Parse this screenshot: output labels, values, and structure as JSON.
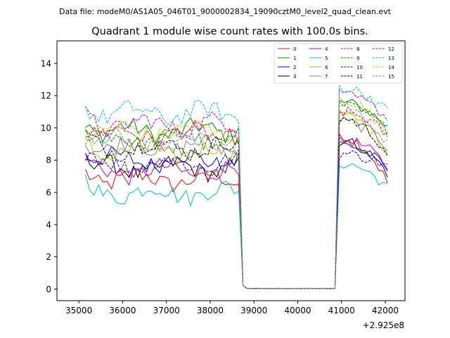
{
  "header": {
    "data_file": "Data file: modeM0/AS1A05_046T01_9000002834_19090cztM0_level2_quad_clean.evt"
  },
  "chart_data": {
    "type": "line",
    "title": "Quadrant 1 module wise count rates with 100.0s bins.",
    "xlabel": "",
    "ylabel": "",
    "x_offset_label": "+2.925e8",
    "xlim": [
      34500,
      42450
    ],
    "ylim": [
      -0.72,
      15.4
    ],
    "xticks": [
      35000,
      36000,
      37000,
      38000,
      39000,
      40000,
      41000,
      42000
    ],
    "xtick_labels": [
      "35000",
      "36000",
      "37000",
      "38000",
      "39000",
      "40000",
      "41000",
      "42000"
    ],
    "yticks": [
      0,
      2,
      4,
      6,
      8,
      10,
      12,
      14
    ],
    "ytick_labels": [
      "0",
      "2",
      "4",
      "6",
      "8",
      "10",
      "12",
      "14"
    ],
    "legend_position": "top-right",
    "x_segments": [
      {
        "start": 35150,
        "step": 100,
        "count": 36
      },
      {
        "start": 38750,
        "step": 100,
        "count": 22
      },
      {
        "start": 40950,
        "step": 100,
        "count": 12
      }
    ],
    "gap_level": 0.02,
    "series": [
      {
        "name": "0",
        "color": "#ff0000",
        "dash": false,
        "level1": 6.8,
        "level2": 9.5,
        "tail": 6.6
      },
      {
        "name": "1",
        "color": "#008000",
        "dash": false,
        "level1": 9.8,
        "level2": 11.6,
        "tail": 10.0
      },
      {
        "name": "2",
        "color": "#0000ff",
        "dash": false,
        "level1": 8.0,
        "level2": 9.0,
        "tail": 7.4
      },
      {
        "name": "3",
        "color": "#000000",
        "dash": false,
        "level1": 7.5,
        "level2": 9.2,
        "tail": 7.2
      },
      {
        "name": "4",
        "color": "#bf00bf",
        "dash": false,
        "level1": 7.3,
        "level2": 9.3,
        "tail": 7.6
      },
      {
        "name": "5",
        "color": "#00bfbf",
        "dash": false,
        "level1": 6.0,
        "level2": 7.8,
        "tail": 6.3
      },
      {
        "name": "6",
        "color": "#bfbf00",
        "dash": false,
        "level1": 8.5,
        "level2": 10.8,
        "tail": 8.5
      },
      {
        "name": "7",
        "color": "#808080",
        "dash": false,
        "level1": 8.8,
        "level2": 10.4,
        "tail": 8.8
      },
      {
        "name": "8",
        "color": "#ff0000",
        "dash": true,
        "level1": 9.6,
        "level2": 11.0,
        "tail": 9.5
      },
      {
        "name": "9",
        "color": "#008000",
        "dash": true,
        "level1": 9.3,
        "level2": 11.4,
        "tail": 9.8
      },
      {
        "name": "10",
        "color": "#0000ff",
        "dash": true,
        "level1": 7.8,
        "level2": 8.4,
        "tail": 7.6
      },
      {
        "name": "11",
        "color": "#000000",
        "dash": true,
        "level1": 8.8,
        "level2": 10.6,
        "tail": 8.4
      },
      {
        "name": "12",
        "color": "#bf00bf",
        "dash": true,
        "level1": 10.2,
        "level2": 12.0,
        "tail": 10.6
      },
      {
        "name": "13",
        "color": "#00bfbf",
        "dash": true,
        "level1": 10.9,
        "level2": 12.5,
        "tail": 11.0
      },
      {
        "name": "14",
        "color": "#bfbf00",
        "dash": true,
        "level1": 9.8,
        "level2": 11.8,
        "tail": 9.5
      },
      {
        "name": "15",
        "color": "#808080",
        "dash": true,
        "level1": 9.2,
        "level2": 11.1,
        "tail": 9.0
      }
    ]
  }
}
